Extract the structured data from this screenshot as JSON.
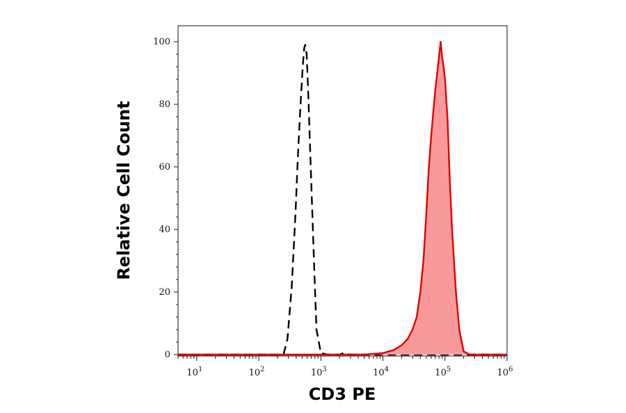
{
  "chart_data": {
    "type": "area",
    "xlabel": "CD3 PE",
    "ylabel": "Relative Cell Count",
    "x_scale": "log",
    "xlim": [
      5,
      1000000
    ],
    "ylim": [
      0,
      100
    ],
    "grid": false,
    "y_ticks": [
      0,
      20,
      40,
      60,
      80,
      100
    ],
    "x_ticks": [
      {
        "base": "10",
        "exp": "1",
        "value": 10
      },
      {
        "base": "10",
        "exp": "2",
        "value": 100
      },
      {
        "base": "10",
        "exp": "3",
        "value": 1000
      },
      {
        "base": "10",
        "exp": "4",
        "value": 10000
      },
      {
        "base": "10",
        "exp": "5",
        "value": 100000
      },
      {
        "base": "10",
        "exp": "6",
        "value": 1000000
      }
    ],
    "series": [
      {
        "style": "dashed",
        "color": "#000000",
        "filled": false,
        "x": [
          5,
          100,
          250,
          290,
          340,
          390,
          430,
          470,
          510,
          540,
          560,
          590,
          630,
          700,
          780,
          850,
          1000,
          1300,
          2000,
          2300,
          3000,
          10000,
          1000000
        ],
        "y": [
          0,
          0,
          0,
          5,
          22,
          45,
          65,
          80,
          92,
          98,
          99,
          96,
          82,
          55,
          28,
          8,
          0.5,
          0,
          0,
          0.5,
          0,
          0,
          0
        ]
      },
      {
        "style": "solid",
        "color": "#e00000",
        "fill": "#f99a9a",
        "filled": true,
        "x": [
          5,
          5000,
          10000,
          15000,
          20000,
          25000,
          30000,
          35000,
          40000,
          45000,
          50000,
          55000,
          60000,
          65000,
          70000,
          75000,
          80000,
          85000,
          90000,
          95000,
          100000,
          110000,
          120000,
          130000,
          150000,
          170000,
          200000,
          250000,
          1000000
        ],
        "y": [
          0,
          0,
          0.5,
          1.5,
          3,
          5,
          8,
          12,
          20,
          30,
          45,
          60,
          70,
          78,
          85,
          90,
          95,
          100,
          95,
          92,
          88,
          75,
          55,
          40,
          20,
          8,
          1,
          0,
          0
        ]
      }
    ]
  }
}
